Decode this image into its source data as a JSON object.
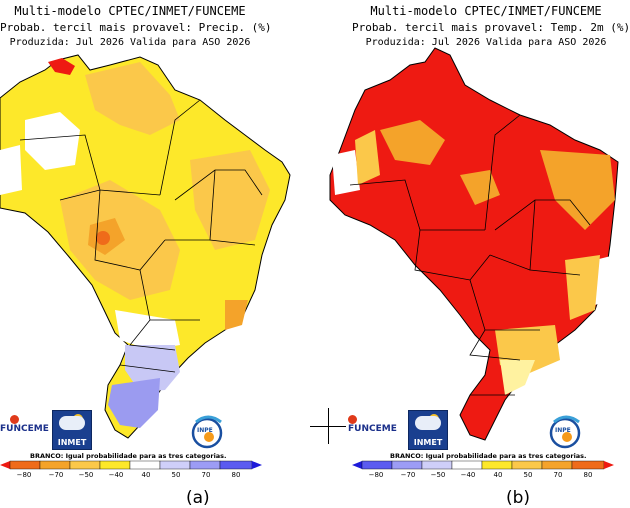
{
  "panels": [
    {
      "title_line1": "Multi-modelo CPTEC/INMET/FUNCEME",
      "title_line2": "Probab. tercil mais provavel: Precip. (%)",
      "title_line3": "Produzida: Jul 2026   Valida para ASO 2026",
      "label": "(a)"
    },
    {
      "title_line1": "Multi-modelo CPTEC/INMET/FUNCEME",
      "title_line2": "Probab. tercil mais provavel: Temp. 2m (%)",
      "title_line3": "Produzida: Jul 2026   Valida para ASO 2026",
      "label": "(b)"
    }
  ],
  "logos": {
    "funceme": "FUNCEME",
    "inmet": "INMET",
    "inpe": "INPE"
  },
  "legend": {
    "note": "BRANCO: Igual probabilidade para as tres categorias.",
    "ticks": [
      "−80",
      "−70",
      "−50",
      "−40",
      "40",
      "50",
      "70",
      "80"
    ],
    "colors": [
      "#1d1ad9",
      "#5b5bf0",
      "#9c9cf5",
      "#cfcff9",
      "#ffffff",
      "#ffe81a",
      "#fbc12a",
      "#f48a1a",
      "#ee1a12"
    ]
  },
  "map_colors": {
    "white": "#ffffff",
    "light_yellow": "#fff2a0",
    "yellow": "#fde82a",
    "orange_yellow": "#fbc84a",
    "orange": "#f4a32a",
    "red_orange": "#ef6b1a",
    "red": "#ee1a12",
    "lavender": "#c8c8f5",
    "blue_lavender": "#9b9bf0"
  }
}
